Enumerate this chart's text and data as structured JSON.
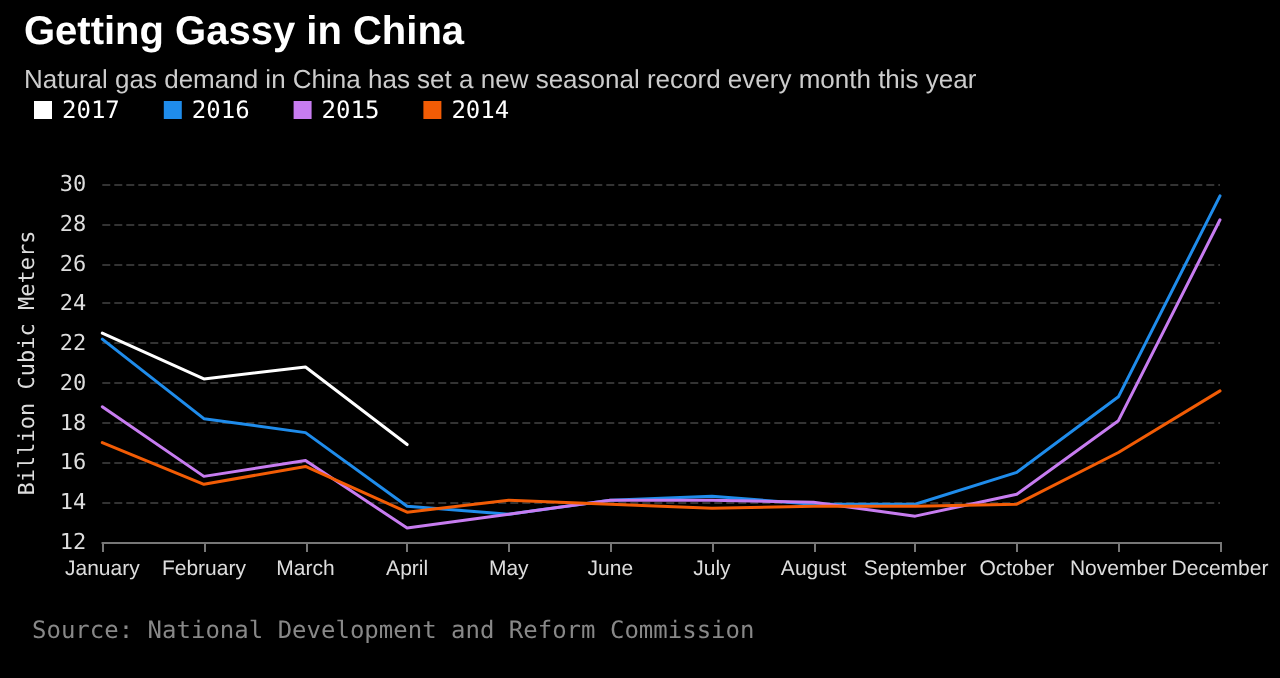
{
  "chart_data": {
    "type": "line",
    "title": "Getting Gassy in China",
    "subtitle": "Natural gas demand in China has set a new seasonal record every month this year",
    "ylabel": "Billion Cubic Meters",
    "categories": [
      "January",
      "February",
      "March",
      "April",
      "May",
      "June",
      "July",
      "August",
      "September",
      "October",
      "November",
      "December"
    ],
    "series": [
      {
        "name": "2017",
        "color": "#ffffff",
        "values": [
          22.5,
          20.2,
          20.8,
          16.9,
          null,
          null,
          null,
          null,
          null,
          null,
          null,
          null
        ]
      },
      {
        "name": "2016",
        "color": "#1f8ceb",
        "values": [
          22.2,
          18.2,
          17.5,
          13.8,
          13.4,
          14.1,
          14.3,
          13.9,
          13.9,
          15.5,
          19.3,
          29.4
        ]
      },
      {
        "name": "2015",
        "color": "#c77cf0",
        "values": [
          18.8,
          15.3,
          16.1,
          12.7,
          13.4,
          14.1,
          14.1,
          14.0,
          13.3,
          14.4,
          18.1,
          28.2
        ]
      },
      {
        "name": "2014",
        "color": "#f25c05",
        "values": [
          17.0,
          14.9,
          15.8,
          13.5,
          14.1,
          13.9,
          13.7,
          13.8,
          13.8,
          13.9,
          16.5,
          19.6
        ]
      }
    ],
    "ylim": [
      12,
      30
    ],
    "yticks": [
      12,
      14,
      16,
      18,
      20,
      22,
      24,
      26,
      28,
      30
    ],
    "grid": "y",
    "legend": "top left",
    "marker": "none",
    "line_style": "solid",
    "annotations": [
      "Source: National Development and Reform Commission"
    ]
  }
}
